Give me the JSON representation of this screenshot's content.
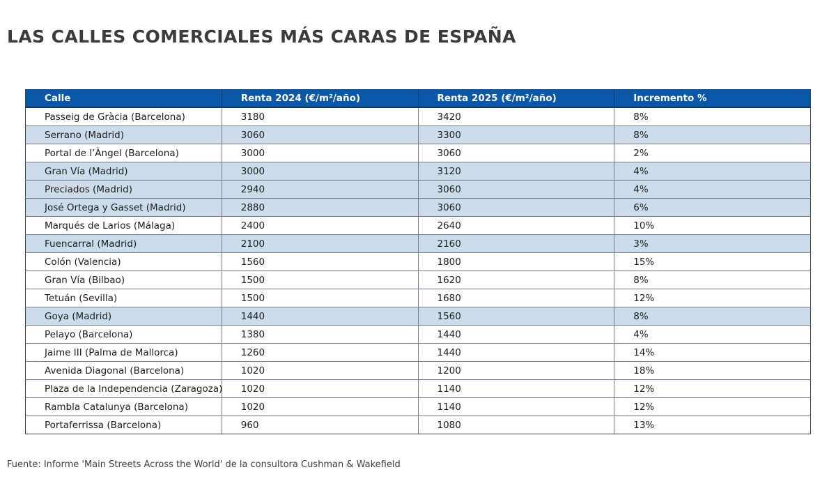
{
  "title": "LAS CALLES COMERCIALES MÁS CARAS DE ESPAÑA",
  "chart_data": {
    "type": "table",
    "title": "LAS CALLES COMERCIALES MÁS CARAS DE ESPAÑA",
    "columns": [
      "Calle",
      "Renta 2024 (€/m²/año)",
      "Renta 2025 (€/m²/año)",
      "Incremento %"
    ],
    "rows": [
      {
        "calle": "Passeig de Gràcia (Barcelona)",
        "renta_2024": "3180",
        "renta_2025": "3420",
        "incremento": "8%",
        "highlighted": false
      },
      {
        "calle": "Serrano (Madrid)",
        "renta_2024": "3060",
        "renta_2025": "3300",
        "incremento": "8%",
        "highlighted": true
      },
      {
        "calle": "Portal de l’Àngel (Barcelona)",
        "renta_2024": "3000",
        "renta_2025": "3060",
        "incremento": "2%",
        "highlighted": false
      },
      {
        "calle": "Gran Vía (Madrid)",
        "renta_2024": "3000",
        "renta_2025": "3120",
        "incremento": "4%",
        "highlighted": true
      },
      {
        "calle": "Preciados (Madrid)",
        "renta_2024": "2940",
        "renta_2025": "3060",
        "incremento": "4%",
        "highlighted": true
      },
      {
        "calle": "José Ortega y Gasset (Madrid)",
        "renta_2024": "2880",
        "renta_2025": "3060",
        "incremento": "6%",
        "highlighted": true
      },
      {
        "calle": "Marqués de Larios (Málaga)",
        "renta_2024": "2400",
        "renta_2025": "2640",
        "incremento": "10%",
        "highlighted": false
      },
      {
        "calle": "Fuencarral (Madrid)",
        "renta_2024": "2100",
        "renta_2025": "2160",
        "incremento": "3%",
        "highlighted": true
      },
      {
        "calle": "Colón (Valencia)",
        "renta_2024": "1560",
        "renta_2025": "1800",
        "incremento": "15%",
        "highlighted": false
      },
      {
        "calle": "Gran Vía (Bilbao)",
        "renta_2024": "1500",
        "renta_2025": "1620",
        "incremento": "8%",
        "highlighted": false
      },
      {
        "calle": "Tetuán (Sevilla)",
        "renta_2024": "1500",
        "renta_2025": "1680",
        "incremento": "12%",
        "highlighted": false
      },
      {
        "calle": "Goya (Madrid)",
        "renta_2024": "1440",
        "renta_2025": "1560",
        "incremento": "8%",
        "highlighted": true
      },
      {
        "calle": "Pelayo (Barcelona)",
        "renta_2024": "1380",
        "renta_2025": "1440",
        "incremento": "4%",
        "highlighted": false
      },
      {
        "calle": "Jaime III (Palma de Mallorca)",
        "renta_2024": "1260",
        "renta_2025": "1440",
        "incremento": "14%",
        "highlighted": false
      },
      {
        "calle": "Avenida Diagonal (Barcelona)",
        "renta_2024": "1020",
        "renta_2025": "1200",
        "incremento": "18%",
        "highlighted": false
      },
      {
        "calle": "Plaza de la Independencia (Zaragoza)",
        "renta_2024": "1020",
        "renta_2025": "1140",
        "incremento": "12%",
        "highlighted": false
      },
      {
        "calle": "Rambla Catalunya (Barcelona)",
        "renta_2024": "1020",
        "renta_2025": "1140",
        "incremento": "12%",
        "highlighted": false
      },
      {
        "calle": "Portaferrissa (Barcelona)",
        "renta_2024": "960",
        "renta_2025": "1080",
        "incremento": "13%",
        "highlighted": false
      }
    ]
  },
  "footer": {
    "source": "Fuente: Informe 'Main Streets Across the World' de la consultora Cushman & Wakefield"
  },
  "colors": {
    "header_bg": "#0b58a8",
    "header_text": "#ffffff",
    "row_highlight_bg": "#ccdcec",
    "title_text": "#3b3b3b",
    "body_text": "#1d1d1d"
  }
}
